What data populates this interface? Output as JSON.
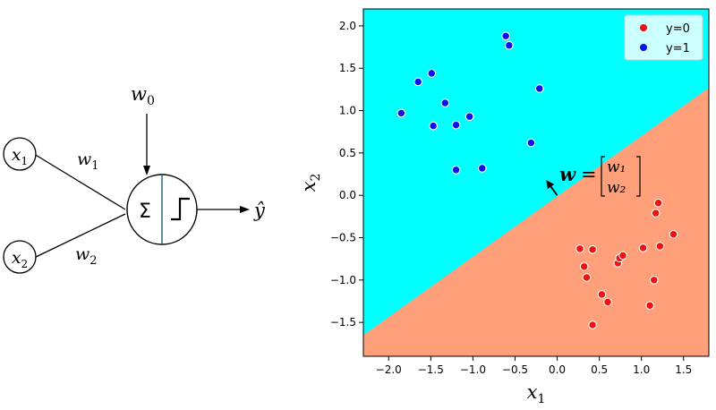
{
  "perceptron": {
    "input_1": {
      "base": "x",
      "sub": "1"
    },
    "input_2": {
      "base": "x",
      "sub": "2"
    },
    "bias_weight": {
      "base": "w",
      "sub": "0"
    },
    "weight_1": {
      "base": "w",
      "sub": "1"
    },
    "weight_2": {
      "base": "w",
      "sub": "2"
    },
    "sum_symbol": "Σ",
    "output": "ŷ"
  },
  "chart_data": {
    "type": "scatter",
    "title": "",
    "xlabel_base": "x",
    "xlabel_sub": "1",
    "ylabel_base": "x",
    "ylabel_sub": "2",
    "xlim": [
      -2.3,
      1.8
    ],
    "ylim": [
      -1.9,
      2.2
    ],
    "xticks": [
      -2.0,
      -1.5,
      -1.0,
      -0.5,
      0.0,
      0.5,
      1.0,
      1.5
    ],
    "yticks": [
      -1.5,
      -1.0,
      -0.5,
      0.0,
      0.5,
      1.0,
      1.5,
      2.0
    ],
    "xtick_labels": [
      "−2.0",
      "−1.5",
      "−1.0",
      "−0.5",
      "0.0",
      "0.5",
      "1.0",
      "1.5"
    ],
    "ytick_labels": [
      "−1.5",
      "−1.0",
      "−0.5",
      "0.0",
      "0.5",
      "1.0",
      "1.5",
      "2.0"
    ],
    "grid": false,
    "legend_position": "top-right",
    "decision_boundary": {
      "x": [
        -2.3,
        1.8
      ],
      "y": [
        -1.65,
        1.27
      ]
    },
    "region_colors": {
      "y1": "#00ffff",
      "y0": "#ffa07a"
    },
    "weight_vector": {
      "from": [
        0.0,
        0.0
      ],
      "to": [
        -0.13,
        0.18
      ],
      "label_base": "w",
      "label_eq": "=",
      "matrix_top": "w₁",
      "matrix_bottom": "w₂"
    },
    "series": [
      {
        "name": "y=0",
        "color": "#ee1111",
        "points": [
          [
            0.27,
            -0.63
          ],
          [
            0.32,
            -0.84
          ],
          [
            0.35,
            -0.97
          ],
          [
            0.42,
            -0.64
          ],
          [
            0.42,
            -1.53
          ],
          [
            0.53,
            -1.17
          ],
          [
            0.6,
            -1.26
          ],
          [
            0.72,
            -0.8
          ],
          [
            0.74,
            -0.74
          ],
          [
            0.78,
            -0.71
          ],
          [
            1.02,
            -0.62
          ],
          [
            1.1,
            -1.3
          ],
          [
            1.15,
            -1.0
          ],
          [
            1.17,
            -0.21
          ],
          [
            1.2,
            -0.09
          ],
          [
            1.22,
            -0.6
          ],
          [
            1.38,
            -0.46
          ]
        ]
      },
      {
        "name": "y=1",
        "color": "#1111ee",
        "points": [
          [
            -1.85,
            0.97
          ],
          [
            -1.65,
            1.34
          ],
          [
            -1.49,
            1.44
          ],
          [
            -1.47,
            0.82
          ],
          [
            -1.33,
            1.09
          ],
          [
            -1.2,
            0.83
          ],
          [
            -1.2,
            0.3
          ],
          [
            -1.04,
            0.93
          ],
          [
            -0.89,
            0.32
          ],
          [
            -0.61,
            1.88
          ],
          [
            -0.57,
            1.77
          ],
          [
            -0.31,
            0.62
          ],
          [
            -0.21,
            1.26
          ]
        ]
      }
    ]
  }
}
